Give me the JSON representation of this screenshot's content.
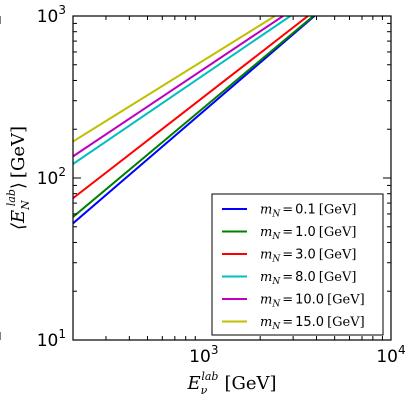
{
  "chart_data": {
    "type": "line",
    "xlabel": "⟨E_ν^lab⟩",
    "xlabel_main": "E",
    "xlabel_sub": "ν",
    "xlabel_sup": "lab",
    "xlabel_unit": "[GeV]",
    "ylabel_main": "⟨E",
    "ylabel_sub": "N",
    "ylabel_sup": "lab",
    "ylabel_close": "⟩",
    "ylabel_unit": "[GeV]",
    "x_scale": "log",
    "y_scale": "log",
    "xlim": [
      200,
      10000
    ],
    "ylim": [
      10,
      1000
    ],
    "x_ticks": [
      {
        "value": 1000,
        "base": "10",
        "exp": "3"
      },
      {
        "value": 10000,
        "base": "10",
        "exp": "4"
      }
    ],
    "y_ticks": [
      {
        "value": 10,
        "base": "10",
        "exp": "1"
      },
      {
        "value": 100,
        "base": "10",
        "exp": "2"
      },
      {
        "value": 1000,
        "base": "10",
        "exp": "3"
      }
    ],
    "grid": false,
    "legend_position": "bottom-right",
    "series": [
      {
        "name": "m_N = 0.1 [GeV]",
        "label_sym": "m",
        "label_sub": "N",
        "label_eq": "=",
        "label_val": "0.1",
        "label_unit": "[GeV]",
        "color": "#0000ff",
        "x": [
          200,
          3900
        ],
        "y": [
          52.5,
          1000
        ]
      },
      {
        "name": "m_N = 1.0 [GeV]",
        "label_sym": "m",
        "label_sub": "N",
        "label_eq": "=",
        "label_val": "1.0",
        "label_unit": "[GeV]",
        "color": "#008000",
        "x": [
          200,
          3850
        ],
        "y": [
          57.5,
          1000
        ]
      },
      {
        "name": "m_N = 3.0 [GeV]",
        "label_sym": "m",
        "label_sub": "N",
        "label_eq": "=",
        "label_val": "3.0",
        "label_unit": "[GeV]",
        "color": "#ff0000",
        "x": [
          200,
          3600
        ],
        "y": [
          75,
          1000
        ]
      },
      {
        "name": "m_N = 8.0 [GeV]",
        "label_sym": "m",
        "label_sub": "N",
        "label_eq": "=",
        "label_val": "8.0",
        "label_unit": "[GeV]",
        "color": "#00bfbf",
        "x": [
          200,
          2900
        ],
        "y": [
          122,
          1000
        ]
      },
      {
        "name": "m_N = 10.0 [GeV]",
        "label_sym": "m",
        "label_sub": "N",
        "label_eq": "=",
        "label_val": "10.0",
        "label_unit": "[GeV]",
        "color": "#bf00bf",
        "x": [
          200,
          2650
        ],
        "y": [
          136,
          1000
        ]
      },
      {
        "name": "m_N = 15.0 [GeV]",
        "label_sym": "m",
        "label_sub": "N",
        "label_eq": "=",
        "label_val": "15.0",
        "label_unit": "[GeV]",
        "color": "#bfbf00",
        "x": [
          200,
          2400
        ],
        "y": [
          168,
          1000
        ]
      }
    ]
  }
}
